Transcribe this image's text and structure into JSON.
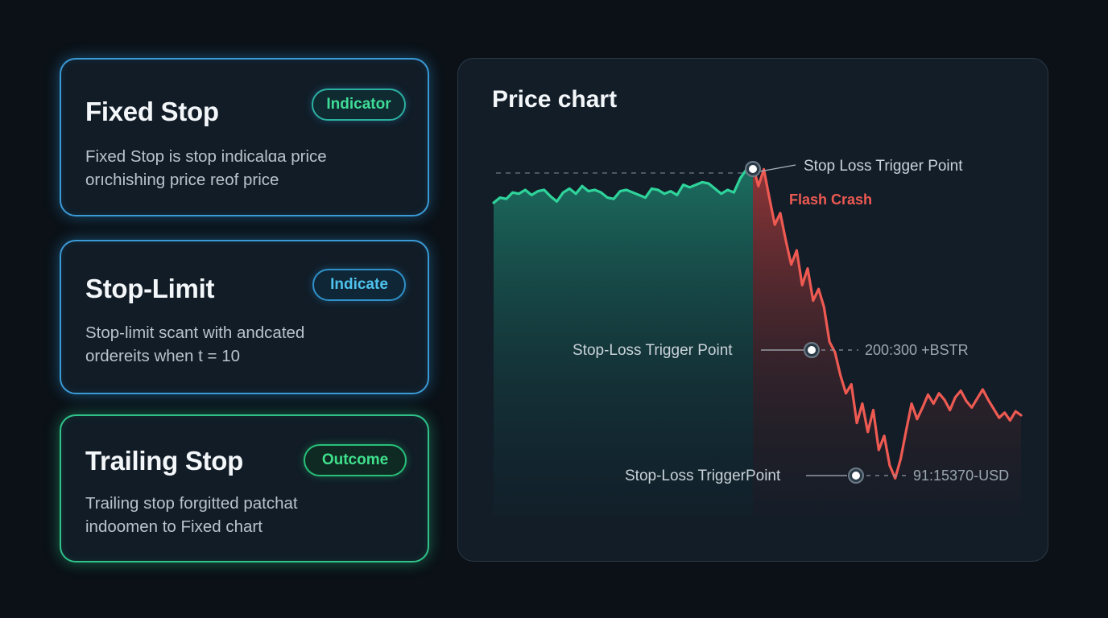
{
  "cards": [
    {
      "title": "Fixed Stop",
      "badge": "Indicator",
      "desc_line1": "Fixed Stop is stop indicalɑa price",
      "desc_line2": "orıchishing price reof price"
    },
    {
      "title": "Stop-Limit",
      "badge": "Indicate",
      "desc_line1": "Stop-limit scant with andcated",
      "desc_line2": "ordereits when t = 10"
    },
    {
      "title": "Trailing Stop",
      "badge": "Outcome",
      "desc_line1": "Trailing stop forgitted patchat",
      "desc_line2": "indoomen to Fixed chart"
    }
  ],
  "chart": {
    "title": "Price chart",
    "annotations": {
      "top_trigger": "Stop Loss Trigger Point",
      "flash_crash": "Flash Crash",
      "mid_trigger": "Stop-Loss Trigger Point",
      "mid_value": "200:300 +BSTR",
      "low_trigger": "Stop-Loss TriggerPoint",
      "low_value": "91:15370-USD"
    },
    "colors": {
      "pre_crash": "#2fd39a",
      "crash": "#ee5a52",
      "panel": "#121d28"
    }
  },
  "chart_data": {
    "type": "line",
    "title": "Price chart",
    "series": [
      {
        "segment": "pre-crash",
        "color": "#2fd39a",
        "values": [
          0.0,
          0.08,
          0.06,
          0.16,
          0.14,
          0.2,
          0.12,
          0.18,
          0.2,
          0.1,
          0.02,
          0.16,
          0.22,
          0.14,
          0.26,
          0.18,
          0.2,
          0.16,
          0.08,
          0.06,
          0.18,
          0.2,
          0.16,
          0.12,
          0.08,
          0.22,
          0.2,
          0.14,
          0.18,
          0.12,
          0.28,
          0.24,
          0.28,
          0.32,
          0.3,
          0.22,
          0.14,
          0.2,
          0.16,
          0.38,
          0.52,
          0.58
        ]
      },
      {
        "segment": "crash",
        "color": "#ee5a52",
        "values": [
          0.58,
          0.26,
          0.52,
          0.08,
          -0.34,
          -0.16,
          -0.58,
          -0.96,
          -0.74,
          -1.28,
          -1.02,
          -1.52,
          -1.34,
          -1.62,
          -2.16,
          -2.32,
          -2.68,
          -2.96,
          -2.82,
          -3.42,
          -3.12,
          -3.56,
          -3.22,
          -3.84,
          -3.62,
          -4.08,
          -4.28,
          -3.98,
          -3.54,
          -3.12,
          -3.36,
          -3.18,
          -2.98,
          -3.12,
          -2.96,
          -3.06,
          -3.22,
          -3.02,
          -2.92,
          -3.08,
          -3.18,
          -3.04,
          -2.9,
          -3.06,
          -3.2,
          -3.34,
          -3.26,
          -3.38,
          -3.24,
          -3.3
        ]
      }
    ]
  }
}
